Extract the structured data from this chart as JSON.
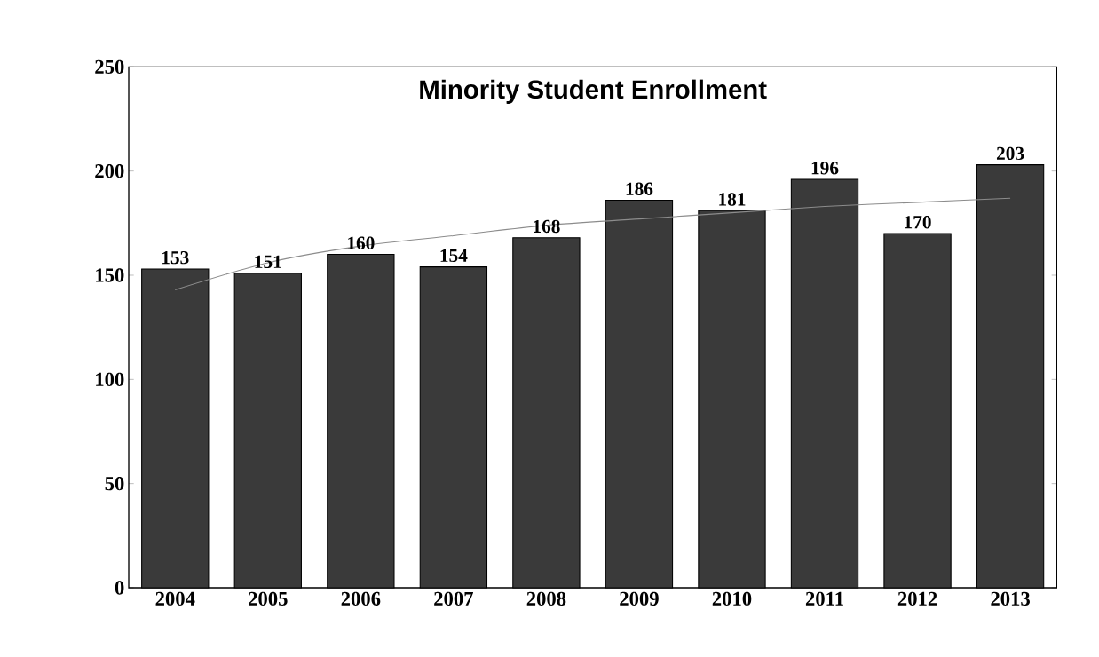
{
  "chart_data": {
    "type": "bar",
    "title": "Minority Student Enrollment",
    "categories": [
      "2004",
      "2005",
      "2006",
      "2007",
      "2008",
      "2009",
      "2010",
      "2011",
      "2012",
      "2013"
    ],
    "ylim": [
      0,
      250
    ],
    "yticks": [
      0,
      50,
      100,
      150,
      200,
      250
    ],
    "grid": false,
    "series": [
      {
        "color": "#3a3a3a",
        "values": [
          153,
          151,
          160,
          154,
          168,
          186,
          181,
          196,
          170,
          203
        ],
        "value_labels": [
          "153",
          "151",
          "160",
          "154",
          "168",
          "186",
          "181",
          "196",
          "170",
          "203"
        ]
      },
      {
        "type": "line",
        "color": "#8c8c8c",
        "values": [
          143,
          156,
          164,
          169,
          174,
          177,
          180,
          183,
          185,
          187
        ]
      }
    ]
  }
}
